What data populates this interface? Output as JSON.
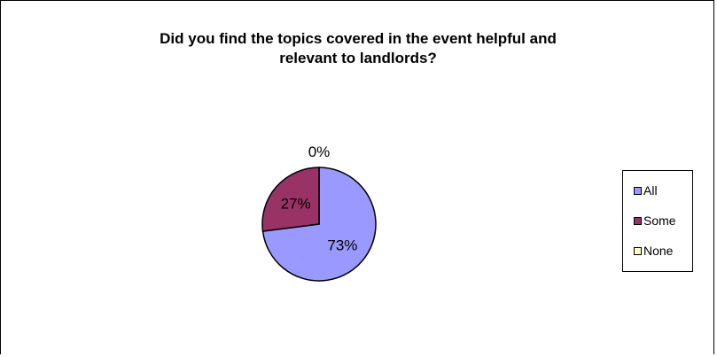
{
  "chart_data": {
    "type": "pie",
    "title_lines": [
      "Did you find the topics covered in the event helpful and",
      "relevant to landlords?"
    ],
    "categories": [
      "All",
      "Some",
      "None"
    ],
    "values": [
      73,
      27,
      0
    ],
    "data_labels": [
      "73%",
      "27%",
      "0%"
    ],
    "colors": [
      "#9999FF",
      "#993366",
      "#FFFFCC"
    ],
    "legend_position": "right"
  }
}
